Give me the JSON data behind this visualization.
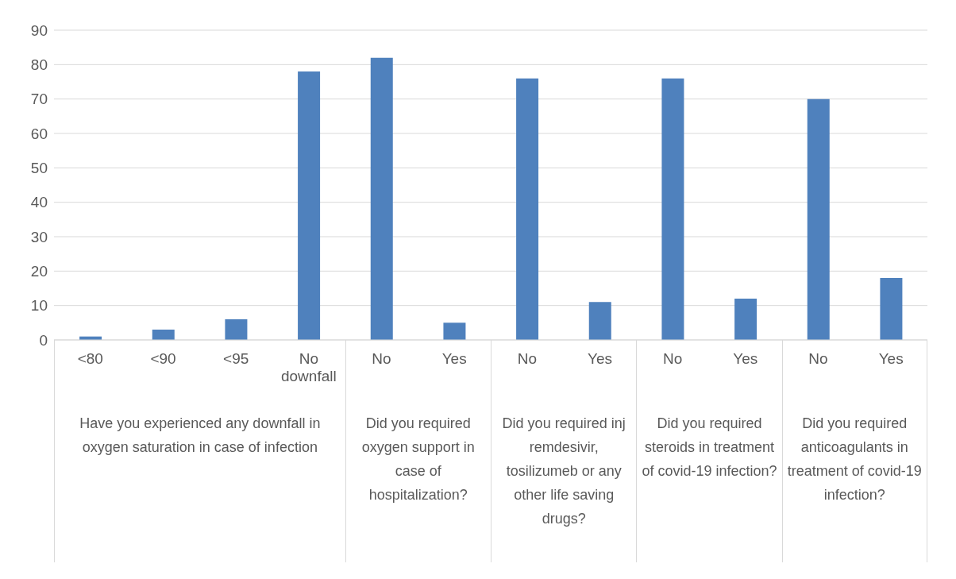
{
  "chart_data": {
    "type": "bar",
    "categories": [
      "<80",
      "<90",
      "<95",
      "No downfall",
      "No",
      "Yes",
      "No",
      "Yes",
      "No",
      "Yes",
      "No",
      "Yes"
    ],
    "values": [
      1,
      3,
      6,
      78,
      82,
      5,
      76,
      11,
      76,
      12,
      70,
      18
    ],
    "color": "#4f81bd",
    "ylim": [
      0,
      90
    ],
    "yticks": [
      0,
      10,
      20,
      30,
      40,
      50,
      60,
      70,
      80,
      90
    ],
    "grid": "y",
    "annotations": [
      "Have you experienced any downfall in oxygen saturation in case of infection",
      "Did you required oxygen support in case of hospitalization?",
      "Did you required inj remdesivir, tosilizumeb or any other life saving drugs?",
      "Did you required steroids in treatment of covid-19 infection?",
      "Did you required anticoagulants in treatment of covid-19 infection?"
    ]
  }
}
